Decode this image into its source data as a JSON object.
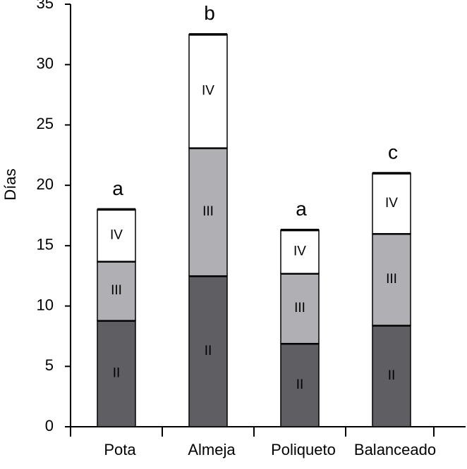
{
  "chart_data": {
    "type": "stacked_bar",
    "y_label": "Días",
    "categories": [
      "Pota",
      "Almeja",
      "Poliqueto",
      "Balanceado"
    ],
    "series": [
      {
        "name": "II",
        "color": "#5f5f63",
        "values": [
          8.8,
          12.5,
          6.9,
          8.4
        ]
      },
      {
        "name": "III",
        "color": "#b0b0b4",
        "values": [
          4.9,
          10.6,
          5.8,
          7.6
        ]
      },
      {
        "name": "IV",
        "color": "#ffffff",
        "values": [
          4.3,
          9.4,
          3.6,
          5.0
        ]
      }
    ],
    "group_labels": [
      "a",
      "b",
      "a",
      "c"
    ],
    "ylim": [
      0,
      35
    ],
    "yticks": [
      0,
      5,
      10,
      15,
      20,
      25,
      30,
      35
    ],
    "grid": false
  }
}
